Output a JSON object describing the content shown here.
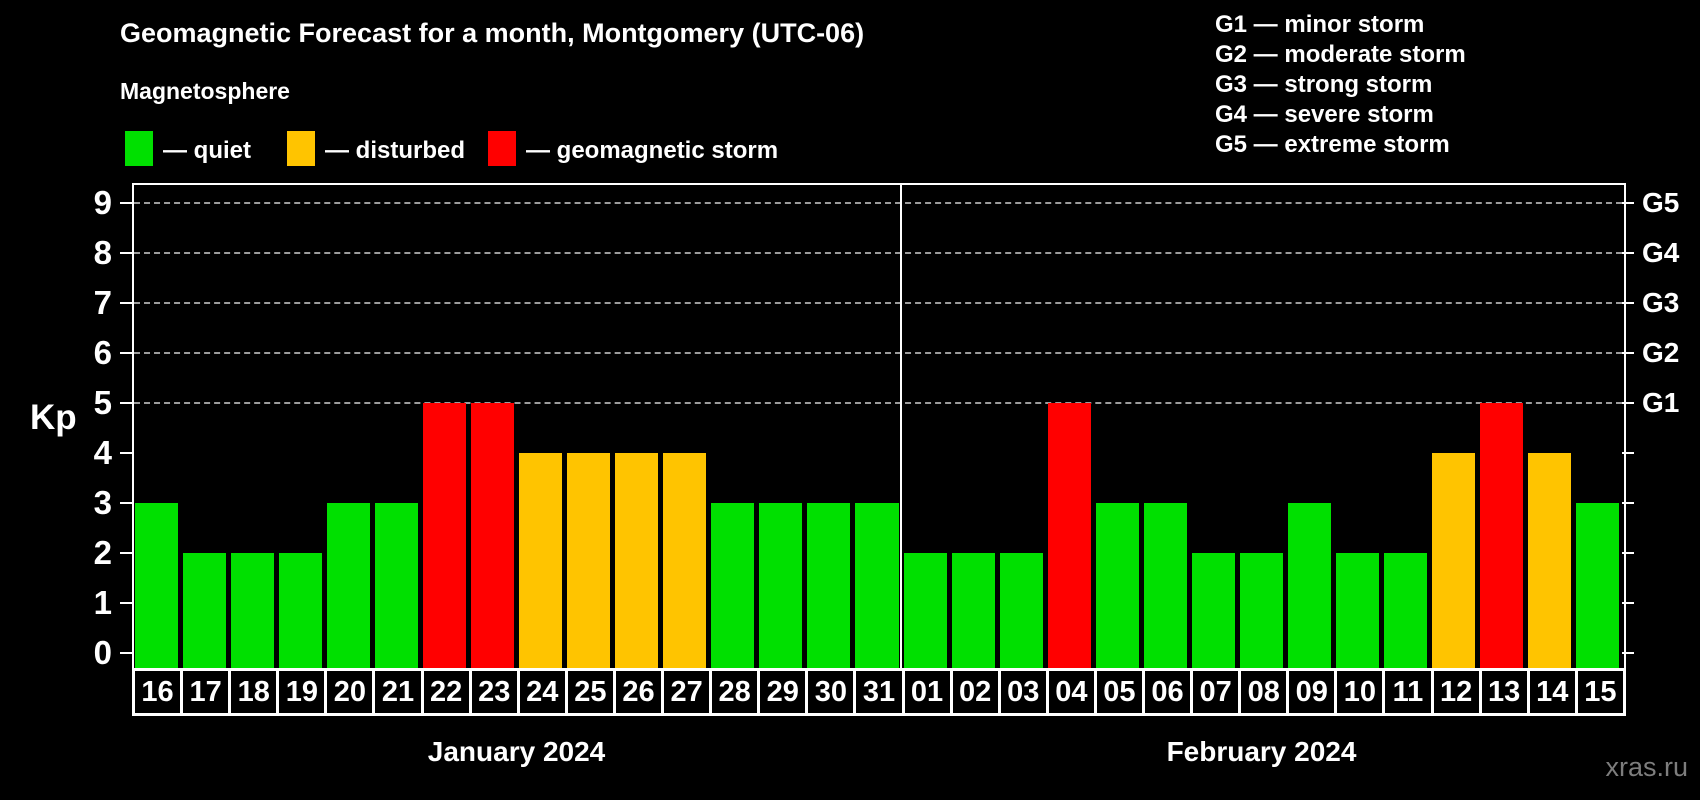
{
  "header": {
    "title": "Geomagnetic Forecast for a month, Montgomery (UTC-06)",
    "subtitle": "Magnetosphere",
    "legend": [
      {
        "key": "quiet",
        "label": "— quiet"
      },
      {
        "key": "disturbed",
        "label": "— disturbed"
      },
      {
        "key": "storm",
        "label": "— geomagnetic storm"
      }
    ],
    "g_scale_legend": [
      "G1 — minor storm",
      "G2 — moderate storm",
      "G3 — strong storm",
      "G4 — severe storm",
      "G5 — extreme storm"
    ]
  },
  "chart_data": {
    "type": "bar",
    "title": "Geomagnetic Forecast for a month, Montgomery (UTC-06)",
    "subtitle": "Magnetosphere",
    "ylabel": "Kp",
    "ylim": [
      0,
      9.5
    ],
    "yticks": [
      0,
      1,
      2,
      3,
      4,
      5,
      6,
      7,
      8,
      9
    ],
    "gridlines_at": [
      5,
      6,
      7,
      8,
      9
    ],
    "grid": "dashed horizontal at Kp 5-9",
    "legend_position": "top-left",
    "right_axis_labels": [
      {
        "kp": 5,
        "label": "G1"
      },
      {
        "kp": 6,
        "label": "G2"
      },
      {
        "kp": 7,
        "label": "G3"
      },
      {
        "kp": 8,
        "label": "G4"
      },
      {
        "kp": 9,
        "label": "G5"
      }
    ],
    "color_rules": {
      "quiet_kp_max": 3,
      "disturbed_kp": 4,
      "storm_kp_min": 5
    },
    "months": [
      {
        "label": "January 2024",
        "days": [
          "16",
          "17",
          "18",
          "19",
          "20",
          "21",
          "22",
          "23",
          "24",
          "25",
          "26",
          "27",
          "28",
          "29",
          "30",
          "31"
        ],
        "values": [
          3,
          2,
          2,
          2,
          3,
          3,
          5,
          5,
          4,
          4,
          4,
          4,
          3,
          3,
          3,
          3
        ]
      },
      {
        "label": "February 2024",
        "days": [
          "01",
          "02",
          "03",
          "04",
          "05",
          "06",
          "07",
          "08",
          "09",
          "10",
          "11",
          "12",
          "13",
          "14",
          "15"
        ],
        "values": [
          2,
          2,
          2,
          5,
          3,
          3,
          2,
          2,
          3,
          2,
          2,
          4,
          5,
          4,
          3
        ]
      }
    ]
  },
  "colors": {
    "quiet": "#00e000",
    "disturbed": "#ffc400",
    "storm": "#ff0000",
    "background": "#000000",
    "axis": "#ffffff",
    "grid": "#9c9c9c",
    "watermark": "#7d7d7d"
  },
  "watermark": "xras.ru"
}
